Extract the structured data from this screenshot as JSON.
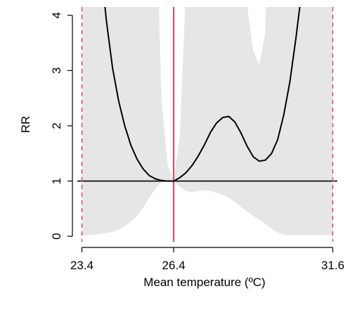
{
  "chart_data": {
    "type": "line",
    "title": "",
    "xlabel": "Mean temperature (ºC)",
    "ylabel": "RR",
    "xlim": [
      23.25,
      31.75
    ],
    "ylim": [
      -0.1,
      4.15
    ],
    "x_ticks": [
      23.4,
      26.4,
      31.6
    ],
    "x_tick_labels": [
      "23.4",
      "26.4",
      "31.6"
    ],
    "y_ticks": [
      0,
      1,
      2,
      3,
      4
    ],
    "y_tick_labels": [
      "0",
      "1",
      "2",
      "3",
      "4"
    ],
    "reference_line": {
      "y": 1,
      "color": "#000000"
    },
    "center_line": {
      "x": 26.4,
      "color": "#d6546a"
    },
    "percentile_lines": {
      "x": [
        23.4,
        31.6
      ],
      "color": "#d6546a",
      "style": "dashed"
    },
    "grid": false,
    "legend": "none",
    "series": [
      {
        "x": [
          23.4,
          23.6,
          23.8,
          24.0,
          24.2,
          24.4,
          24.6,
          24.8,
          25.0,
          25.2,
          25.4,
          25.6,
          25.8,
          26.0,
          26.2,
          26.4,
          26.6,
          26.8,
          27.0,
          27.2,
          27.4,
          27.6,
          27.8,
          28.0,
          28.2,
          28.4,
          28.6,
          28.8,
          29.0,
          29.2,
          29.4,
          29.6,
          29.8,
          30.0,
          30.2,
          30.4,
          30.6,
          30.8,
          31.0,
          31.2,
          31.4,
          31.6
        ],
        "rr": [
          12.0,
          9.0,
          6.6,
          5.0,
          3.9,
          3.05,
          2.45,
          2.0,
          1.65,
          1.4,
          1.22,
          1.1,
          1.04,
          1.01,
          1.0,
          1.0,
          1.06,
          1.15,
          1.28,
          1.45,
          1.65,
          1.88,
          2.05,
          2.15,
          2.17,
          2.07,
          1.87,
          1.63,
          1.44,
          1.36,
          1.38,
          1.5,
          1.75,
          2.2,
          2.8,
          3.6,
          4.5,
          6.0,
          8.0,
          10.0,
          12.0,
          14.0
        ],
        "ci_lower": [
          0.02,
          0.02,
          0.03,
          0.04,
          0.06,
          0.08,
          0.12,
          0.18,
          0.26,
          0.37,
          0.52,
          0.7,
          0.86,
          0.97,
          1.0,
          1.0,
          0.9,
          0.82,
          0.8,
          0.82,
          0.84,
          0.82,
          0.79,
          0.75,
          0.7,
          0.62,
          0.53,
          0.45,
          0.37,
          0.3,
          0.22,
          0.14,
          0.07,
          0.03,
          0.02,
          0.02,
          0.02,
          0.02,
          0.02,
          0.02,
          0.02,
          0.02
        ],
        "ci_upper": [
          20.0,
          20.0,
          20.0,
          20.0,
          20.0,
          20.0,
          20.0,
          20.0,
          20.0,
          20.0,
          20.0,
          20.0,
          6.5,
          2.5,
          1.3,
          1.0,
          1.8,
          4.5,
          9.0,
          20.0,
          20.0,
          20.0,
          20.0,
          20.0,
          20.0,
          20.0,
          20.0,
          20.0,
          20.0,
          20.0,
          20.0,
          20.0,
          20.0,
          20.0,
          20.0,
          20.0,
          20.0,
          20.0,
          20.0,
          20.0,
          20.0,
          20.0
        ],
        "ci_upper_dip": {
          "x": [
            28.2,
            28.6,
            29.0,
            29.2,
            29.4,
            29.6
          ],
          "rr": [
            20.0,
            5.0,
            3.35,
            3.1,
            3.7,
            20.0
          ]
        }
      }
    ]
  }
}
